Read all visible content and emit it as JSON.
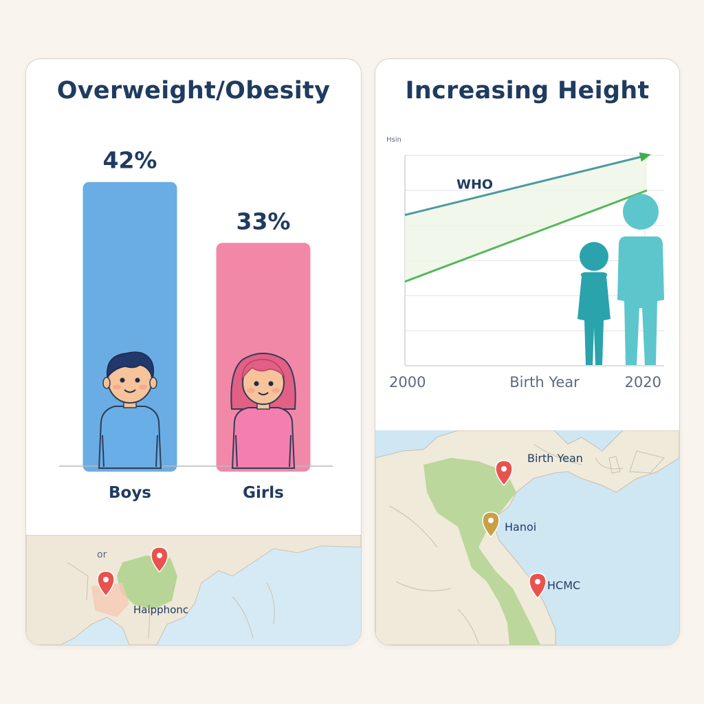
{
  "left_card": {
    "title": "Overweight/Obesity",
    "map": {
      "label": "Haipphonc",
      "partial_label": "or"
    }
  },
  "right_card": {
    "title": "Increasing Height",
    "map": {
      "labels": [
        "Birth Yean",
        "Hanoi",
        "HCMC"
      ]
    }
  },
  "chart_data": [
    {
      "type": "bar",
      "title": "Overweight/Obesity",
      "categories": [
        "Boys",
        "Girls"
      ],
      "values": [
        42,
        33
      ],
      "value_labels": [
        "42%",
        "33%"
      ],
      "ylim": [
        0,
        50
      ],
      "colors": [
        "#6aade4",
        "#f288a8"
      ],
      "icons": [
        "boy-icon",
        "girl-icon"
      ]
    },
    {
      "type": "line",
      "title": "Increasing Height",
      "xlabel": "Birth Year",
      "ylabel": "Hsin",
      "x_ticks": [
        "2000",
        "2020"
      ],
      "xlim": [
        2000,
        2020
      ],
      "ylim": [
        0,
        6
      ],
      "grid": true,
      "series": [
        {
          "name": "WHO",
          "x": [
            2000,
            2020
          ],
          "y": [
            4.3,
            6.0
          ],
          "color": "#4a9a9e"
        },
        {
          "x": [
            2000,
            2020
          ],
          "y": [
            2.4,
            5.0
          ],
          "color": "#55b85a"
        }
      ],
      "icons": [
        "child-figure-small",
        "child-figure-tall"
      ]
    }
  ]
}
